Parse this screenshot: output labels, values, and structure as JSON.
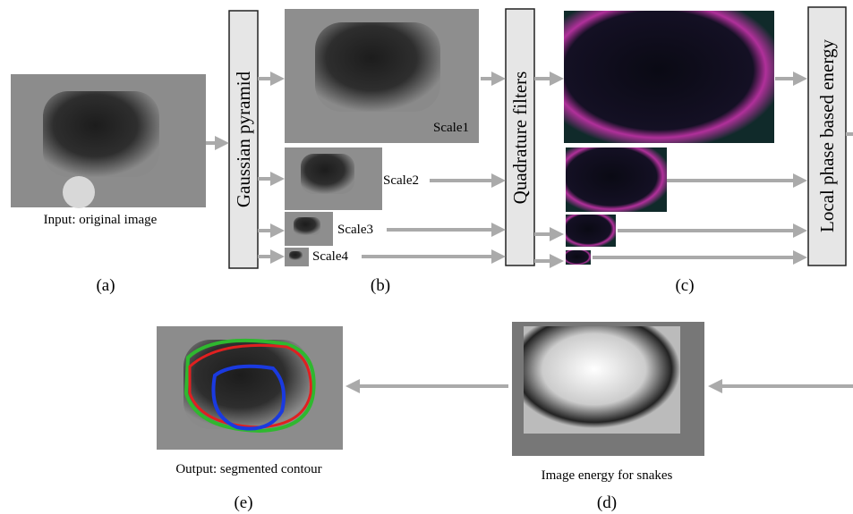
{
  "panels": {
    "a": {
      "caption": "Input: original image",
      "label": "(a)"
    },
    "b": {
      "box": "Gaussian pyramid",
      "scales": [
        "Scale1",
        "Scale2",
        "Scale3",
        "Scale4"
      ],
      "label": "(b)"
    },
    "c": {
      "box": "Quadrature filters",
      "output_box": "Local phase based energy",
      "label": "(c)"
    },
    "d": {
      "caption": "Image energy for snakes",
      "label": "(d)"
    },
    "e": {
      "caption": "Output: segmented contour",
      "label": "(e)"
    }
  }
}
